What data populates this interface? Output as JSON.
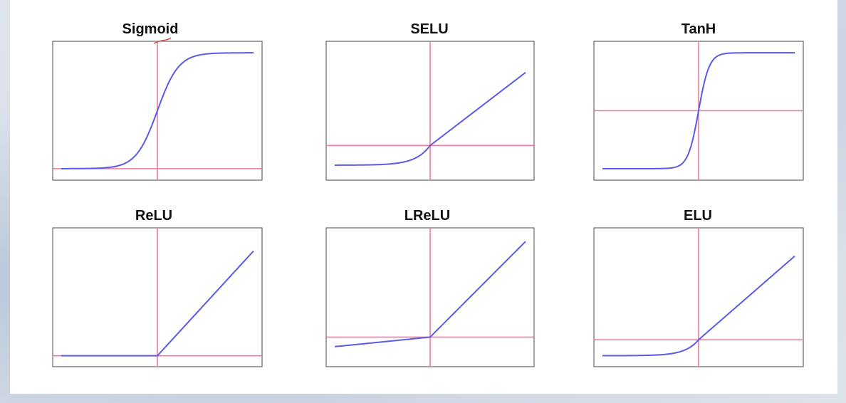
{
  "chart_data": [
    {
      "type": "line",
      "title": "Sigmoid",
      "function": "sigmoid",
      "x": [
        -6,
        6
      ],
      "ylim": [
        -0.05,
        1.05
      ],
      "annotation": "handwritten tick mark above plot"
    },
    {
      "type": "line",
      "title": "SELU",
      "function": "selu",
      "x": [
        -6,
        6
      ],
      "ylim": [
        -2.5,
        8.5
      ]
    },
    {
      "type": "line",
      "title": "TanH",
      "function": "tanh",
      "x": [
        -6,
        6
      ],
      "ylim": [
        -1.1,
        1.1
      ]
    },
    {
      "type": "line",
      "title": "ReLU",
      "function": "relu",
      "x": [
        -6,
        6
      ],
      "ylim": [
        -0.3,
        7
      ]
    },
    {
      "type": "line",
      "title": "LReLU",
      "function": "leaky_relu",
      "x": [
        -6,
        6
      ],
      "ylim": [
        -1.5,
        6.5
      ]
    },
    {
      "type": "line",
      "title": "ELU",
      "function": "elu",
      "x": [
        -6,
        6
      ],
      "ylim": [
        -1.6,
        8
      ]
    }
  ],
  "colors": {
    "curve": "#5a5be8",
    "axis": "#f07aa0",
    "frame": "#666666",
    "background": "#ffffff"
  }
}
